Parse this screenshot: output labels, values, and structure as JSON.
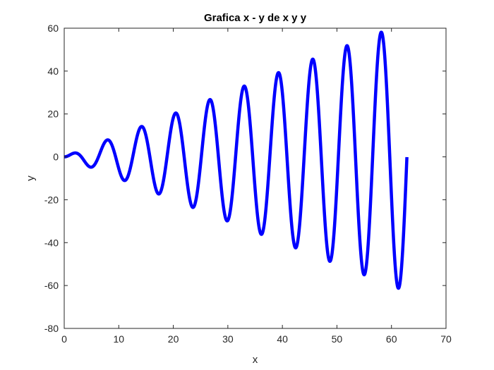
{
  "chart_data": {
    "type": "line",
    "title": "Grafica x - y de x y y",
    "xlabel": "x",
    "ylabel": "y",
    "xlim": [
      0,
      70
    ],
    "ylim": [
      -80,
      60
    ],
    "xticks": [
      "0",
      "10",
      "20",
      "30",
      "40",
      "50",
      "60",
      "70"
    ],
    "yticks": [
      "-80",
      "-60",
      "-40",
      "-20",
      "0",
      "20",
      "40",
      "60"
    ],
    "grid": false,
    "legend": "none",
    "series": [
      {
        "color": "#0000ff",
        "function": "y = x * sin(x)",
        "x_range": [
          0,
          62.83
        ],
        "x": [
          0,
          2.03,
          4.91,
          7.98,
          11.09,
          14.21,
          17.34,
          20.47,
          23.6,
          26.74,
          29.88,
          33.02,
          36.16,
          39.3,
          42.44,
          45.57,
          48.71,
          51.85,
          54.99,
          58.13,
          61.28,
          62.83
        ],
        "values": [
          0,
          1.82,
          -4.81,
          7.92,
          -11.04,
          14.17,
          -17.31,
          20.44,
          -23.58,
          26.72,
          -29.86,
          33.0,
          -36.14,
          39.28,
          -42.42,
          45.57,
          -48.71,
          51.85,
          -54.99,
          58.13,
          -61.27,
          0
        ]
      }
    ]
  }
}
